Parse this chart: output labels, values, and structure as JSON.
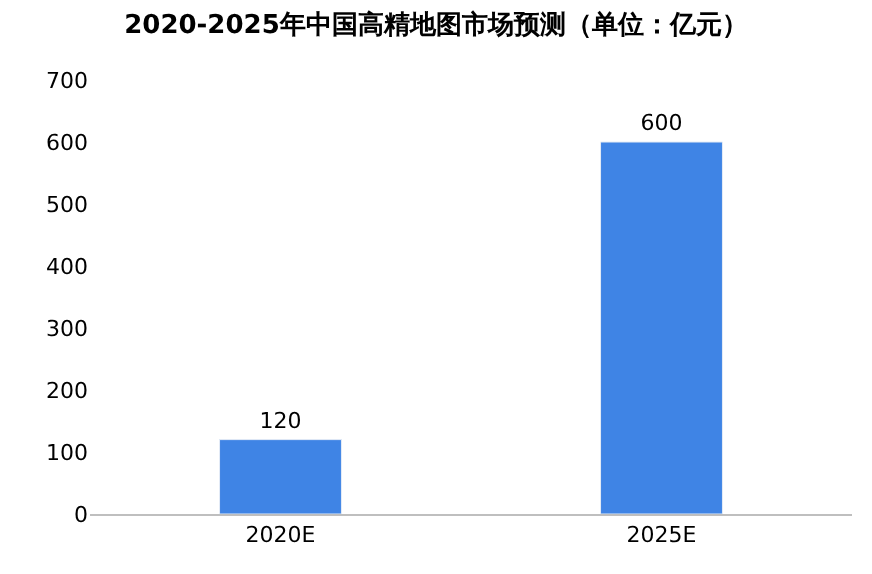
{
  "chart_data": {
    "type": "bar",
    "title": "2020-2025年中国高精地图市场预测（单位：亿元）",
    "categories": [
      "2020E",
      "2025E"
    ],
    "values": [
      120,
      600
    ],
    "color": "#3f84e5",
    "ylim": [
      0,
      700
    ],
    "yticks": [
      0,
      100,
      200,
      300,
      400,
      500,
      600,
      700
    ],
    "data_labels": true,
    "grid": false,
    "legend": false
  }
}
